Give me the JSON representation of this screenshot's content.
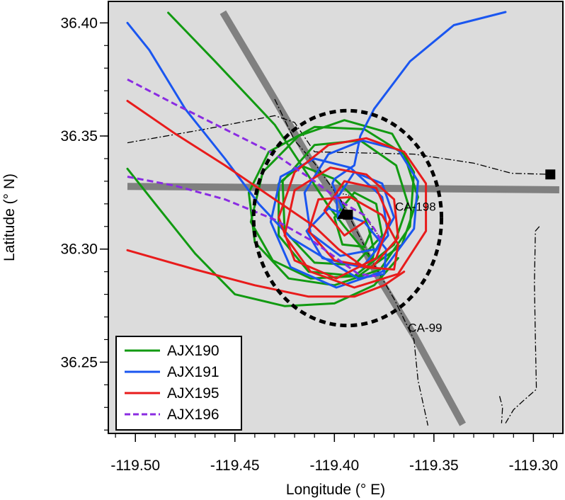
{
  "chart_data": {
    "type": "line",
    "xlabel": "Longitude (° E)",
    "ylabel": "Latitude (° N)",
    "xlim": [
      -119.5136,
      -119.2852
    ],
    "ylim": [
      36.2185,
      36.4095
    ],
    "x_ticks": [
      -119.5,
      -119.45,
      -119.4,
      -119.35,
      -119.3
    ],
    "x_tick_labels": [
      "-119.50",
      "-119.45",
      "-119.40",
      "-119.35",
      "-119.30"
    ],
    "y_ticks": [
      36.25,
      36.3,
      36.35,
      36.4
    ],
    "y_tick_labels": [
      "36.25",
      "36.30",
      "36.35",
      "36.40"
    ],
    "background_color": "#dcdcdc",
    "grid": false,
    "legend_position": "bottom-left",
    "roads": [
      {
        "name": "CA-198",
        "color": "#808080",
        "points": [
          [
            -119.504,
            36.3277
          ],
          [
            -119.287,
            36.3262
          ]
        ]
      },
      {
        "name": "CA-99",
        "color": "#808080",
        "points": [
          [
            -119.456,
            36.4047
          ],
          [
            -119.43,
            36.3663
          ],
          [
            -119.412,
            36.339
          ],
          [
            -119.395,
            36.317
          ],
          [
            -119.378,
            36.2878
          ],
          [
            -119.36,
            36.2619
          ],
          [
            -119.3355,
            36.2225
          ]
        ]
      }
    ],
    "boundaries": [
      {
        "style": "dash-dot",
        "points": [
          [
            -119.504,
            36.347
          ],
          [
            -119.465,
            36.353
          ],
          [
            -119.43,
            36.359
          ],
          [
            -119.42,
            36.356
          ],
          [
            -119.41,
            36.343
          ],
          [
            -119.36,
            36.342
          ],
          [
            -119.33,
            36.338
          ],
          [
            -119.311,
            36.3335
          ],
          [
            -119.29,
            36.333
          ]
        ]
      },
      {
        "style": "dash-dot",
        "points": [
          [
            -119.43,
            36.3663
          ],
          [
            -119.42,
            36.348
          ],
          [
            -119.41,
            36.338
          ],
          [
            -119.397,
            36.322
          ],
          [
            -119.38,
            36.293
          ],
          [
            -119.37,
            36.278
          ],
          [
            -119.36,
            36.26
          ],
          [
            -119.358,
            36.242
          ],
          [
            -119.353,
            36.222
          ]
        ]
      },
      {
        "style": "dash-dot",
        "points": [
          [
            -119.297,
            36.31
          ],
          [
            -119.299,
            36.308
          ],
          [
            -119.2995,
            36.285
          ],
          [
            -119.299,
            36.26
          ],
          [
            -119.2985,
            36.238
          ],
          [
            -119.305,
            36.233
          ],
          [
            -119.31,
            36.229
          ],
          [
            -119.314,
            36.223
          ]
        ]
      },
      {
        "style": "dash-dot",
        "points": [
          [
            -119.317,
            36.235
          ],
          [
            -119.3155,
            36.23
          ],
          [
            -119.316,
            36.223
          ]
        ]
      }
    ],
    "small_track": {
      "style": "dotted",
      "points": [
        [
          -119.4,
          36.325
        ],
        [
          -119.393,
          36.324
        ],
        [
          -119.388,
          36.32
        ],
        [
          -119.385,
          36.314
        ],
        [
          -119.38,
          36.309
        ],
        [
          -119.378,
          36.306
        ]
      ]
    },
    "circle": {
      "center": [
        -119.3934,
        36.3137
      ],
      "radius_lon": 0.0472,
      "radius_lat": 0.0475,
      "style": "dashed",
      "color": "#000000"
    },
    "markers": [
      {
        "type": "triangle",
        "position": [
          -119.3955,
          36.3152
        ],
        "color": "#000000"
      },
      {
        "type": "square",
        "position": [
          -119.3932,
          36.3152
        ],
        "color": "#000000"
      },
      {
        "type": "square",
        "position": [
          -119.2915,
          36.333
        ],
        "color": "#000000"
      }
    ],
    "annotations": [
      {
        "text": "CA-198",
        "position": [
          -119.3695,
          36.317
        ]
      },
      {
        "text": "CA-99",
        "position": [
          -119.363,
          36.2635
        ]
      }
    ],
    "series": [
      {
        "name": "AJX190",
        "color": "#119a11",
        "style": "solid",
        "lines": [
          [
            [
              -119.4835,
              36.4045
            ],
            [
              -119.46,
              36.383
            ],
            [
              -119.43,
              36.355
            ],
            [
              -119.415,
              36.335
            ],
            [
              -119.403,
              36.319
            ],
            [
              -119.395,
              36.31
            ],
            [
              -119.381,
              36.295
            ],
            [
              -119.38,
              36.299
            ],
            [
              -119.383,
              36.31
            ],
            [
              -119.389,
              36.322
            ],
            [
              -119.4,
              36.331
            ],
            [
              -119.417,
              36.337
            ],
            [
              -119.428,
              36.329
            ],
            [
              -119.428,
              36.306
            ],
            [
              -119.413,
              36.29
            ],
            [
              -119.388,
              36.288
            ],
            [
              -119.366,
              36.302
            ],
            [
              -119.358,
              36.323
            ],
            [
              -119.365,
              36.342
            ],
            [
              -119.385,
              36.353
            ],
            [
              -119.41,
              36.354
            ],
            [
              -119.433,
              36.343
            ],
            [
              -119.443,
              36.325
            ],
            [
              -119.44,
              36.303
            ],
            [
              -119.423,
              36.287
            ],
            [
              -119.4,
              36.284
            ],
            [
              -119.377,
              36.291
            ],
            [
              -119.362,
              36.31
            ],
            [
              -119.36,
              36.334
            ],
            [
              -119.371,
              36.351
            ],
            [
              -119.395,
              36.357
            ],
            [
              -119.418,
              36.35
            ],
            [
              -119.436,
              36.334
            ],
            [
              -119.442,
              36.312
            ],
            [
              -119.431,
              36.295
            ],
            [
              -119.412,
              36.287
            ],
            [
              -119.39,
              36.288
            ],
            [
              -119.37,
              36.302
            ],
            [
              -119.363,
              36.32
            ],
            [
              -119.369,
              36.337
            ],
            [
              -119.387,
              36.348
            ],
            [
              -119.41,
              36.346
            ],
            [
              -119.426,
              36.33
            ],
            [
              -119.425,
              36.308
            ],
            [
              -119.41,
              36.294
            ],
            [
              -119.39,
              36.293
            ],
            [
              -119.376,
              36.306
            ],
            [
              -119.379,
              36.32
            ],
            [
              -119.39,
              36.325
            ],
            [
              -119.4,
              36.314
            ],
            [
              -119.396,
              36.302
            ],
            [
              -119.385,
              36.301
            ],
            [
              -119.381,
              36.309
            ]
          ],
          [
            [
              -119.504,
              36.3355
            ],
            [
              -119.49,
              36.32
            ],
            [
              -119.47,
              36.298
            ],
            [
              -119.45,
              36.28
            ],
            [
              -119.425,
              36.2748
            ],
            [
              -119.4,
              36.276
            ],
            [
              -119.38,
              36.284
            ],
            [
              -119.368,
              36.296
            ]
          ]
        ]
      },
      {
        "name": "AJX191",
        "color": "#1a56f0",
        "style": "solid",
        "lines": [
          [
            [
              -119.504,
              36.4
            ],
            [
              -119.493,
              36.388
            ],
            [
              -119.475,
              36.362
            ],
            [
              -119.455,
              36.34
            ],
            [
              -119.438,
              36.32
            ],
            [
              -119.422,
              36.305
            ],
            [
              -119.405,
              36.296
            ],
            [
              -119.388,
              36.287
            ],
            [
              -119.375,
              36.289
            ],
            [
              -119.374,
              36.3
            ],
            [
              -119.385,
              36.312
            ],
            [
              -119.403,
              36.318
            ],
            [
              -119.414,
              36.308
            ],
            [
              -119.406,
              36.296
            ],
            [
              -119.386,
              36.292
            ],
            [
              -119.373,
              36.306
            ],
            [
              -119.376,
              36.323
            ],
            [
              -119.392,
              36.336
            ],
            [
              -119.41,
              36.34
            ],
            [
              -119.427,
              36.332
            ],
            [
              -119.432,
              36.312
            ],
            [
              -119.422,
              36.292
            ],
            [
              -119.399,
              36.283
            ],
            [
              -119.376,
              36.29
            ],
            [
              -119.36,
              36.309
            ],
            [
              -119.358,
              36.33
            ],
            [
              -119.368,
              36.344
            ],
            [
              -119.386,
              36.348
            ],
            [
              -119.403,
              36.342
            ],
            [
              -119.415,
              36.325
            ],
            [
              -119.412,
              36.307
            ],
            [
              -119.397,
              36.297
            ],
            [
              -119.379,
              36.3
            ],
            [
              -119.37,
              36.314
            ],
            [
              -119.376,
              36.329
            ],
            [
              -119.39,
              36.334
            ],
            [
              -119.399,
              36.322
            ],
            [
              -119.398,
              36.313
            ]
          ],
          [
            [
              -119.396,
              36.318
            ],
            [
              -119.401,
              36.329
            ],
            [
              -119.4,
              36.331
            ],
            [
              -119.39,
              36.337
            ],
            [
              -119.387,
              36.35
            ],
            [
              -119.38,
              36.362
            ],
            [
              -119.362,
              36.383
            ],
            [
              -119.34,
              36.399
            ],
            [
              -119.314,
              36.4048
            ]
          ]
        ]
      },
      {
        "name": "AJX195",
        "color": "#e81b1b",
        "style": "solid",
        "lines": [
          [
            [
              -119.504,
              36.3655
            ],
            [
              -119.48,
              36.351
            ],
            [
              -119.455,
              36.337
            ],
            [
              -119.43,
              36.322
            ],
            [
              -119.41,
              36.31
            ],
            [
              -119.398,
              36.3
            ],
            [
              -119.385,
              36.292
            ],
            [
              -119.37,
              36.291
            ],
            [
              -119.368,
              36.302
            ],
            [
              -119.376,
              36.315
            ],
            [
              -119.392,
              36.323
            ],
            [
              -119.408,
              36.322
            ],
            [
              -119.413,
              36.308
            ],
            [
              -119.4,
              36.295
            ],
            [
              -119.381,
              36.292
            ],
            [
              -119.368,
              36.305
            ],
            [
              -119.37,
              36.322
            ],
            [
              -119.384,
              36.333
            ],
            [
              -119.402,
              36.336
            ],
            [
              -119.42,
              36.326
            ],
            [
              -119.425,
              36.306
            ],
            [
              -119.412,
              36.29
            ],
            [
              -119.39,
              36.283
            ],
            [
              -119.368,
              36.289
            ],
            [
              -119.354,
              36.308
            ],
            [
              -119.354,
              36.329
            ],
            [
              -119.365,
              36.343
            ],
            [
              -119.384,
              36.349
            ],
            [
              -119.403,
              36.346
            ],
            [
              -119.42,
              36.334
            ],
            [
              -119.428,
              36.314
            ],
            [
              -119.42,
              36.295
            ],
            [
              -119.399,
              36.287
            ],
            [
              -119.379,
              36.296
            ],
            [
              -119.372,
              36.313
            ],
            [
              -119.379,
              36.327
            ],
            [
              -119.395,
              36.33
            ],
            [
              -119.405,
              36.317
            ],
            [
              -119.395,
              36.306
            ],
            [
              -119.385,
              36.312
            ]
          ],
          [
            [
              -119.504,
              36.2995
            ],
            [
              -119.47,
              36.291
            ],
            [
              -119.44,
              36.284
            ],
            [
              -119.413,
              36.279
            ],
            [
              -119.39,
              36.279
            ],
            [
              -119.375,
              36.284
            ],
            [
              -119.365,
              36.29
            ]
          ]
        ]
      },
      {
        "name": "AJX196",
        "color": "#8a2be2",
        "style": "dashed",
        "lines": [
          [
            [
              -119.504,
              36.375
            ],
            [
              -119.48,
              36.364
            ],
            [
              -119.455,
              36.353
            ],
            [
              -119.43,
              36.342
            ],
            [
              -119.41,
              36.33
            ],
            [
              -119.395,
              36.32
            ],
            [
              -119.385,
              36.315
            ],
            [
              -119.38,
              36.309
            ],
            [
              -119.376,
              36.303
            ]
          ],
          [
            [
              -119.504,
              36.332
            ],
            [
              -119.48,
              36.328
            ],
            [
              -119.455,
              36.322
            ],
            [
              -119.43,
              36.313
            ],
            [
              -119.41,
              36.303
            ],
            [
              -119.399,
              36.296
            ],
            [
              -119.388,
              36.289
            ],
            [
              -119.379,
              36.288
            ]
          ]
        ]
      }
    ]
  }
}
